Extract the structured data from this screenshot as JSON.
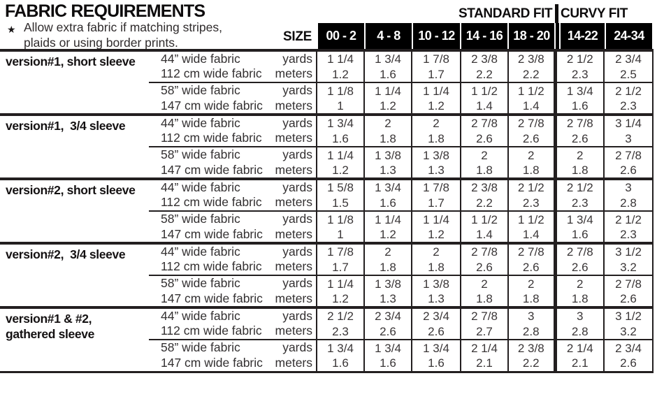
{
  "page": {
    "title": "FABRIC REQUIREMENTS",
    "note": {
      "bullet": "★",
      "line1": "Allow extra fabric if matching stripes,",
      "line2": "plaids or using border prints."
    }
  },
  "colors": {
    "header_bg": "#000000",
    "header_text": "#ffffff",
    "grid": "#231f20",
    "text_primary": "#0e0c0d",
    "text_data": "#3a3637"
  },
  "table": {
    "size_label": "SIZE",
    "fit_groups": [
      {
        "label": "STANDARD FIT",
        "columns": 5
      },
      {
        "label": "CURVY FIT",
        "columns": 2
      }
    ],
    "size_columns": [
      "00 - 2",
      "4 - 8",
      "10 - 12",
      "14 - 16",
      "18 - 20",
      "14-22",
      "24-34"
    ],
    "sections": [
      {
        "label": "version#1, short sleeve",
        "rows": [
          {
            "fabric": "44” wide fabric",
            "unit": "yards",
            "values": [
              "1 1/4",
              "1 3/4",
              "1 7/8",
              "2 3/8",
              "2 3/8",
              "2 1/2",
              "2 3/4"
            ]
          },
          {
            "fabric": "112 cm wide fabric",
            "unit": "meters",
            "values": [
              "1.2",
              "1.6",
              "1.7",
              "2.2",
              "2.2",
              "2.3",
              "2.5"
            ]
          },
          {
            "fabric": "58” wide fabric",
            "unit": "yards",
            "values": [
              "1 1/8",
              "1 1/4",
              "1 1/4",
              "1 1/2",
              "1 1/2",
              "1 3/4",
              "2 1/2"
            ]
          },
          {
            "fabric": "147 cm wide fabric",
            "unit": "meters",
            "values": [
              "1",
              "1.2",
              "1.2",
              "1.4",
              "1.4",
              "1.6",
              "2.3"
            ]
          }
        ]
      },
      {
        "label": "version#1,  3/4 sleeve",
        "rows": [
          {
            "fabric": "44” wide fabric",
            "unit": "yards",
            "values": [
              "1 3/4",
              "2",
              "2",
              "2 7/8",
              "2 7/8",
              "2 7/8",
              "3 1/4"
            ]
          },
          {
            "fabric": "112 cm wide fabric",
            "unit": "meters",
            "values": [
              "1.6",
              "1.8",
              "1.8",
              "2.6",
              "2.6",
              "2.6",
              "3"
            ]
          },
          {
            "fabric": "58” wide fabric",
            "unit": "yards",
            "values": [
              "1 1/4",
              "1 3/8",
              "1 3/8",
              "2",
              "2",
              "2",
              "2 7/8"
            ]
          },
          {
            "fabric": "147 cm wide fabric",
            "unit": "meters",
            "values": [
              "1.2",
              "1.3",
              "1.3",
              "1.8",
              "1.8",
              "1.8",
              "2.6"
            ]
          }
        ]
      },
      {
        "label": "version#2, short sleeve",
        "rows": [
          {
            "fabric": "44” wide fabric",
            "unit": "yards",
            "values": [
              "1 5/8",
              "1 3/4",
              "1 7/8",
              "2 3/8",
              "2 1/2",
              "2 1/2",
              "3"
            ]
          },
          {
            "fabric": "112 cm wide fabric",
            "unit": "meters",
            "values": [
              "1.5",
              "1.6",
              "1.7",
              "2.2",
              "2.3",
              "2.3",
              "2.8"
            ]
          },
          {
            "fabric": "58” wide fabric",
            "unit": "yards",
            "values": [
              "1 1/8",
              "1 1/4",
              "1 1/4",
              "1 1/2",
              "1 1/2",
              "1 3/4",
              "2 1/2"
            ]
          },
          {
            "fabric": "147 cm wide fabric",
            "unit": "meters",
            "values": [
              "1",
              "1.2",
              "1.2",
              "1.4",
              "1.4",
              "1.6",
              "2.3"
            ]
          }
        ]
      },
      {
        "label": "version#2,  3/4 sleeve",
        "rows": [
          {
            "fabric": "44” wide fabric",
            "unit": "yards",
            "values": [
              "1 7/8",
              "2",
              "2",
              "2 7/8",
              "2 7/8",
              "2 7/8",
              "3 1/2"
            ]
          },
          {
            "fabric": "112 cm wide fabric",
            "unit": "meters",
            "values": [
              "1.7",
              "1.8",
              "1.8",
              "2.6",
              "2.6",
              "2.6",
              "3.2"
            ]
          },
          {
            "fabric": "58” wide fabric",
            "unit": "yards",
            "values": [
              "1 1/4",
              "1 3/8",
              "1 3/8",
              "2",
              "2",
              "2",
              "2 7/8"
            ]
          },
          {
            "fabric": "147 cm wide fabric",
            "unit": "meters",
            "values": [
              "1.2",
              "1.3",
              "1.3",
              "1.8",
              "1.8",
              "1.8",
              "2.6"
            ]
          }
        ]
      },
      {
        "label": "version#1 & #2,\ngathered sleeve",
        "rows": [
          {
            "fabric": "44” wide fabric",
            "unit": "yards",
            "values": [
              "2 1/2",
              "2 3/4",
              "2 3/4",
              "2 7/8",
              "3",
              "3",
              "3 1/2"
            ]
          },
          {
            "fabric": "112 cm wide fabric",
            "unit": "meters",
            "values": [
              "2.3",
              "2.6",
              "2.6",
              "2.7",
              "2.8",
              "2.8",
              "3.2"
            ]
          },
          {
            "fabric": "58” wide fabric",
            "unit": "yards",
            "values": [
              "1 3/4",
              "1 3/4",
              "1 3/4",
              "2 1/4",
              "2 3/8",
              "2 1/4",
              "2 3/4"
            ]
          },
          {
            "fabric": "147 cm wide fabric",
            "unit": "meters",
            "values": [
              "1.6",
              "1.6",
              "1.6",
              "2.1",
              "2.2",
              "2.1",
              "2.6"
            ]
          }
        ]
      }
    ]
  }
}
